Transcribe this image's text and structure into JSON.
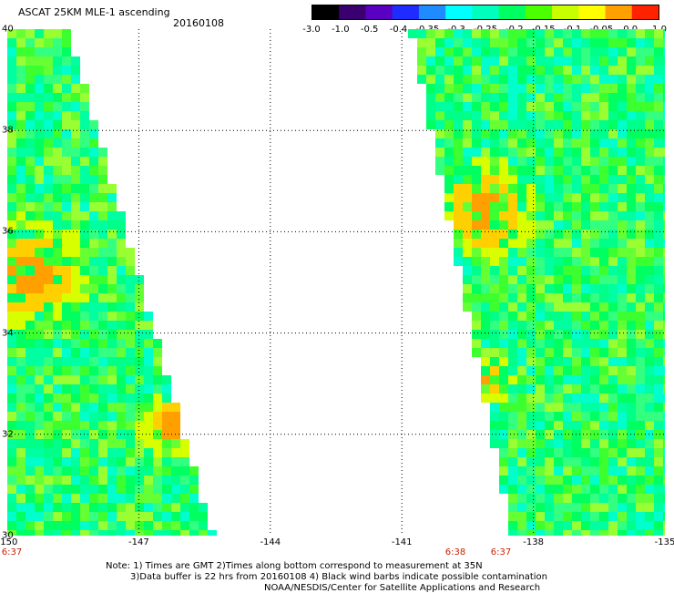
{
  "header": {
    "title": "ASCAT 25KM MLE-1 ascending",
    "date": "20160108"
  },
  "colorbar": {
    "labels": [
      "-3.0",
      "-1.0",
      "-0.5",
      "-0.4",
      "-0.35",
      "-0.3",
      "-0.25",
      "-0.2",
      "-0.15",
      "-0.1",
      "-0.05",
      "0.0",
      "1.0"
    ],
    "colors": [
      "#000000",
      "#3a0070",
      "#5a00c0",
      "#1e2cff",
      "#1e8cff",
      "#00ffff",
      "#00ffbf",
      "#00ff60",
      "#4cff00",
      "#c8ff00",
      "#ffff00",
      "#ffa000",
      "#ff2200"
    ]
  },
  "map": {
    "lon_range": [
      -150,
      -135
    ],
    "lat_range": [
      30,
      40
    ],
    "x_ticks": [
      "-150",
      "-147",
      "-144",
      "-141",
      "-138",
      "-135"
    ],
    "y_ticks": [
      "30",
      "32",
      "34",
      "36",
      "38",
      "40"
    ],
    "time_labels": [
      "6:37",
      "6:38",
      "6:37"
    ],
    "swaths": [
      {
        "name": "west-swath",
        "lat_range": [
          30,
          40
        ],
        "west_lon": -150,
        "east_lon_at_lat_40": -148.7,
        "east_lon_at_lat_30": -145.4
      },
      {
        "name": "east-swath",
        "lat_range": [
          30,
          40
        ],
        "west_lon_at_lat_40": -140.7,
        "west_lon_at_lat_30": -138.4,
        "east_lon": -135
      }
    ]
  },
  "notes": {
    "line1": "Note: 1) Times are GMT 2)Times along bottom correspond to measurement at 35N",
    "line2": "3)Data buffer is 22 hrs from 20160108 4) Black wind barbs indicate possible contamination",
    "line3": "NOAA/NESDIS/Center for Satellite Applications and Research"
  }
}
